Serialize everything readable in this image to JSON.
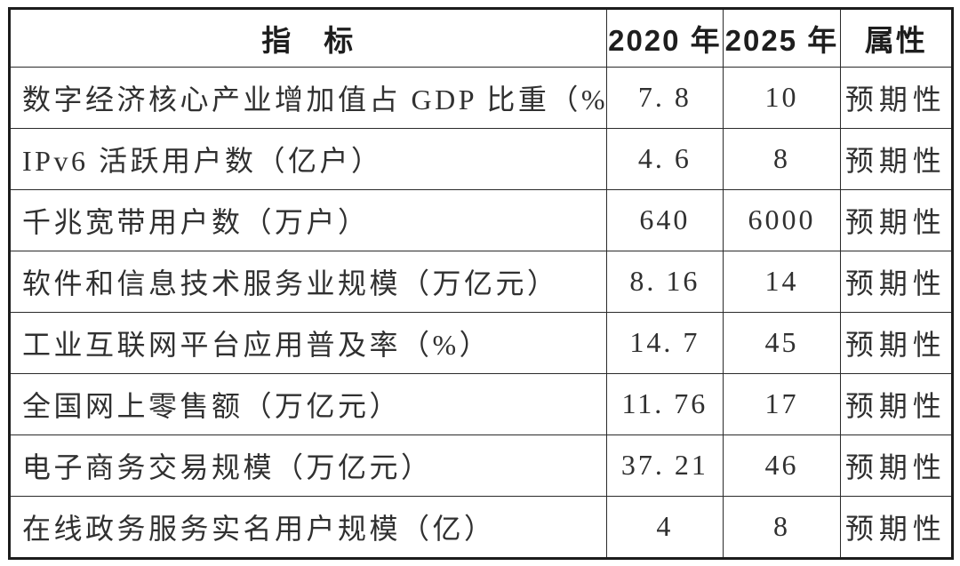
{
  "document": {
    "background_color": "#ffffff",
    "border_color": "#1c1c1c",
    "text_color": "#303030"
  },
  "table": {
    "headers": {
      "indicator": "指　标",
      "y2020": "2020 年",
      "y2025": "2025 年",
      "attribute": "属性"
    },
    "rows": [
      {
        "indicator": "数字经济核心产业增加值占 GDP 比重（%）",
        "y2020": "7. 8",
        "y2025": "10",
        "attribute": "预期性"
      },
      {
        "indicator": "IPv6 活跃用户数（亿户）",
        "y2020": "4. 6",
        "y2025": "8",
        "attribute": "预期性"
      },
      {
        "indicator": "千兆宽带用户数（万户）",
        "y2020": "640",
        "y2025": "6000",
        "attribute": "预期性"
      },
      {
        "indicator": "软件和信息技术服务业规模（万亿元）",
        "y2020": "8. 16",
        "y2025": "14",
        "attribute": "预期性"
      },
      {
        "indicator": "工业互联网平台应用普及率（%）",
        "y2020": "14. 7",
        "y2025": "45",
        "attribute": "预期性"
      },
      {
        "indicator": "全国网上零售额（万亿元）",
        "y2020": "11. 76",
        "y2025": "17",
        "attribute": "预期性"
      },
      {
        "indicator": "电子商务交易规模（万亿元）",
        "y2020": "37. 21",
        "y2025": "46",
        "attribute": "预期性"
      },
      {
        "indicator": "在线政务服务实名用户规模（亿）",
        "y2020": "4",
        "y2025": "8",
        "attribute": "预期性"
      }
    ]
  }
}
